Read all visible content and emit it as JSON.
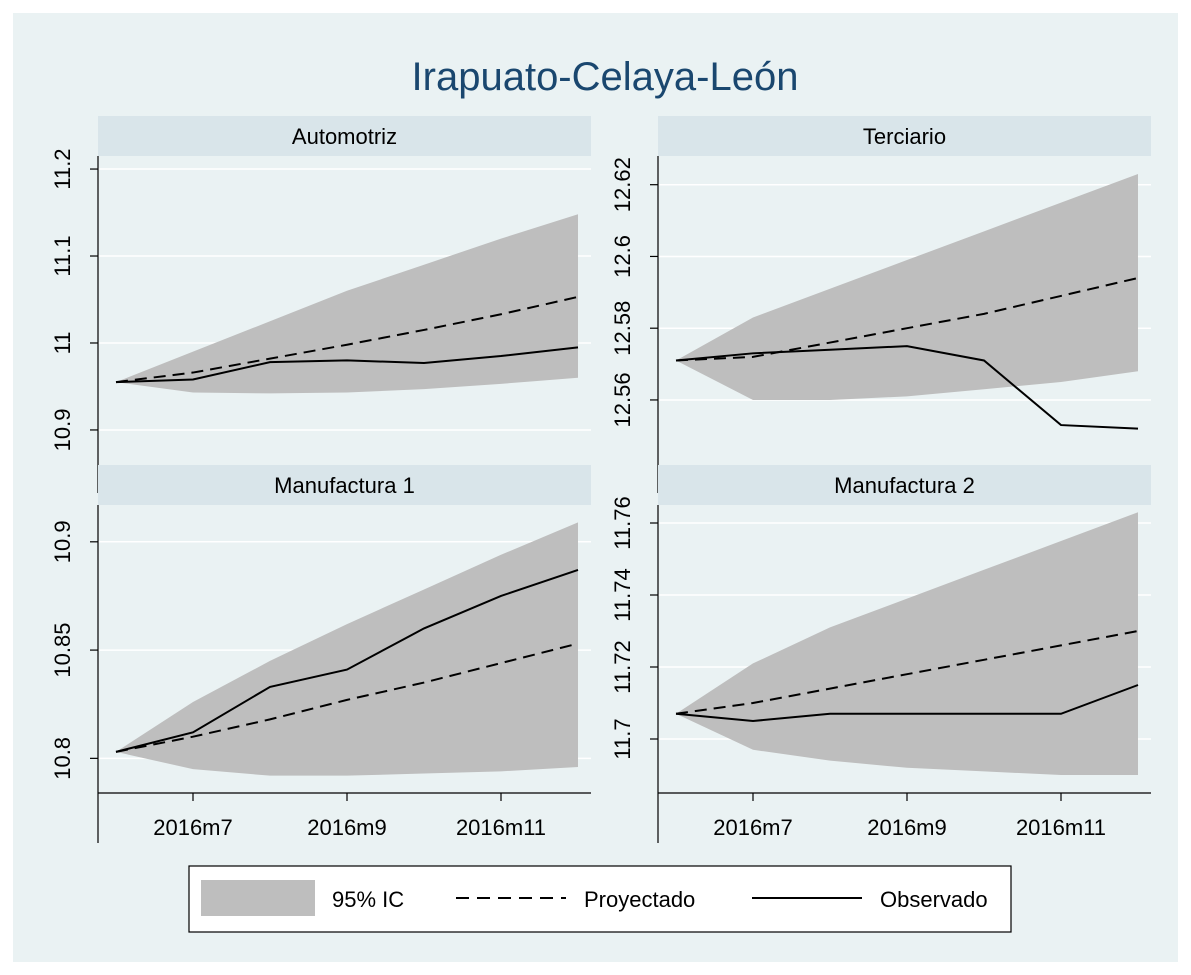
{
  "title": "Irapuato-Celaya-León",
  "colors": {
    "background": "#eaf2f3",
    "panel_header": "#d9e5ea",
    "band": "#bebebe",
    "line": "#000000",
    "grid": "#ffffff",
    "title": "#1a476f"
  },
  "legend": {
    "items": [
      {
        "key": "band",
        "label": "95% IC"
      },
      {
        "key": "dashed",
        "label": "Proyectado"
      },
      {
        "key": "solid",
        "label": "Observado"
      }
    ]
  },
  "chart_data": [
    {
      "type": "line",
      "panel": "Automotriz",
      "x": [
        "2016m6",
        "2016m7",
        "2016m8",
        "2016m9",
        "2016m10",
        "2016m11",
        "2016m12"
      ],
      "xticks": [
        "2016m7",
        "2016m9",
        "2016m11"
      ],
      "yticks": [
        10.9,
        11,
        11.1,
        11.2
      ],
      "ylim": [
        10.885,
        11.215
      ],
      "grid": true,
      "ci_upper": [
        10.955,
        10.99,
        11.025,
        11.06,
        11.09,
        11.12,
        11.148
      ],
      "ci_lower": [
        10.955,
        10.943,
        10.942,
        10.943,
        10.947,
        10.953,
        10.96
      ],
      "series": [
        {
          "name": "Proyectado",
          "style": "dashed",
          "values": [
            10.955,
            10.966,
            10.982,
            10.998,
            11.015,
            11.033,
            11.053
          ]
        },
        {
          "name": "Observado",
          "style": "solid",
          "values": [
            10.955,
            10.958,
            10.978,
            10.98,
            10.977,
            10.985,
            10.995
          ]
        }
      ]
    },
    {
      "type": "line",
      "panel": "Terciario",
      "x": [
        "2016m6",
        "2016m7",
        "2016m8",
        "2016m9",
        "2016m10",
        "2016m11",
        "2016m12"
      ],
      "xticks": [
        "2016m7",
        "2016m9",
        "2016m11"
      ],
      "yticks": [
        12.56,
        12.58,
        12.6,
        12.62
      ],
      "ylim": [
        12.548,
        12.628
      ],
      "grid": true,
      "ci_upper": [
        12.571,
        12.583,
        12.591,
        12.599,
        12.607,
        12.615,
        12.623
      ],
      "ci_lower": [
        12.571,
        12.56,
        12.56,
        12.561,
        12.563,
        12.565,
        12.568
      ],
      "series": [
        {
          "name": "Proyectado",
          "style": "dashed",
          "values": [
            12.571,
            12.572,
            12.576,
            12.58,
            12.584,
            12.589,
            12.594
          ]
        },
        {
          "name": "Observado",
          "style": "solid",
          "values": [
            12.571,
            12.573,
            12.574,
            12.575,
            12.571,
            12.553,
            12.552
          ]
        }
      ]
    },
    {
      "type": "line",
      "panel": "Manufactura 1",
      "x": [
        "2016m6",
        "2016m7",
        "2016m8",
        "2016m9",
        "2016m10",
        "2016m11",
        "2016m12"
      ],
      "xticks": [
        "2016m7",
        "2016m9",
        "2016m11"
      ],
      "yticks": [
        10.8,
        10.85,
        10.9
      ],
      "ylim": [
        10.784,
        10.917
      ],
      "grid": true,
      "ci_upper": [
        10.803,
        10.826,
        10.845,
        10.862,
        10.878,
        10.894,
        10.909
      ],
      "ci_lower": [
        10.803,
        10.795,
        10.792,
        10.792,
        10.793,
        10.794,
        10.796
      ],
      "series": [
        {
          "name": "Proyectado",
          "style": "dashed",
          "values": [
            10.803,
            10.81,
            10.818,
            10.827,
            10.835,
            10.844,
            10.853
          ]
        },
        {
          "name": "Observado",
          "style": "solid",
          "values": [
            10.803,
            10.812,
            10.833,
            10.841,
            10.86,
            10.875,
            10.887
          ]
        }
      ]
    },
    {
      "type": "line",
      "panel": "Manufactura 2",
      "x": [
        "2016m6",
        "2016m7",
        "2016m8",
        "2016m9",
        "2016m10",
        "2016m11",
        "2016m12"
      ],
      "xticks": [
        "2016m7",
        "2016m9",
        "2016m11"
      ],
      "yticks": [
        11.7,
        11.72,
        11.74,
        11.76
      ],
      "ylim": [
        11.685,
        11.765
      ],
      "grid": true,
      "ci_upper": [
        11.707,
        11.721,
        11.731,
        11.739,
        11.747,
        11.755,
        11.763
      ],
      "ci_lower": [
        11.707,
        11.697,
        11.694,
        11.692,
        11.691,
        11.69,
        11.69
      ],
      "series": [
        {
          "name": "Proyectado",
          "style": "dashed",
          "values": [
            11.707,
            11.71,
            11.714,
            11.718,
            11.722,
            11.726,
            11.73
          ]
        },
        {
          "name": "Observado",
          "style": "solid",
          "values": [
            11.707,
            11.705,
            11.707,
            11.707,
            11.707,
            11.707,
            11.715
          ]
        }
      ]
    }
  ]
}
